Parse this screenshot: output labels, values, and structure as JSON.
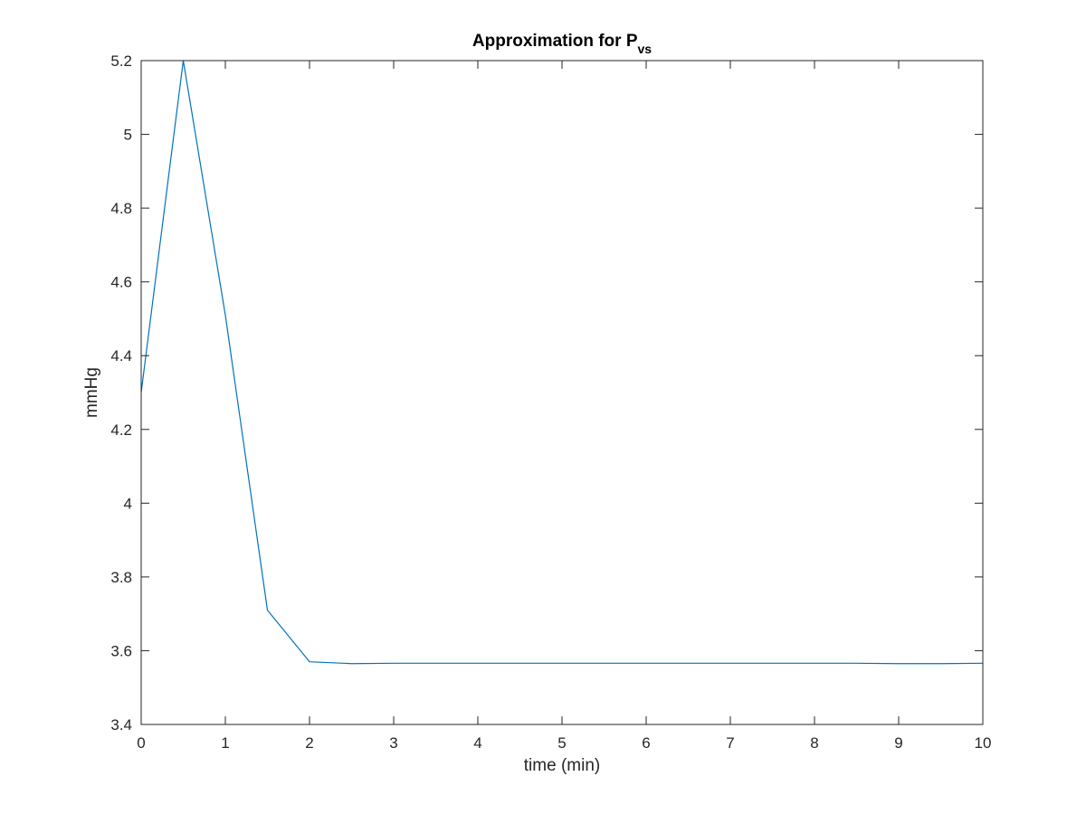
{
  "chart_data": {
    "type": "line",
    "title": "Approximation for P",
    "title_subscript": "vs",
    "xlabel": "time (min)",
    "ylabel": "mmHg",
    "xlim": [
      0,
      10
    ],
    "ylim": [
      3.4,
      5.2
    ],
    "x_ticks": [
      "0",
      "1",
      "2",
      "3",
      "4",
      "5",
      "6",
      "7",
      "8",
      "9",
      "10"
    ],
    "y_ticks": [
      "3.4",
      "3.6",
      "3.8",
      "4",
      "4.2",
      "4.4",
      "4.6",
      "4.8",
      "5",
      "5.2"
    ],
    "grid": false,
    "box": true,
    "series": [
      {
        "color": "#0072BD",
        "x": [
          0,
          0.5,
          1.0,
          1.5,
          2.0,
          2.5,
          3.0,
          3.5,
          4.0,
          4.5,
          5.0,
          5.5,
          6.0,
          6.5,
          7.0,
          7.5,
          8.0,
          8.5,
          9.0,
          9.5,
          10.0
        ],
        "y": [
          4.3,
          5.2,
          4.51,
          3.71,
          3.57,
          3.565,
          3.566,
          3.566,
          3.566,
          3.566,
          3.566,
          3.566,
          3.566,
          3.566,
          3.566,
          3.566,
          3.566,
          3.566,
          3.565,
          3.565,
          3.566
        ]
      }
    ]
  }
}
